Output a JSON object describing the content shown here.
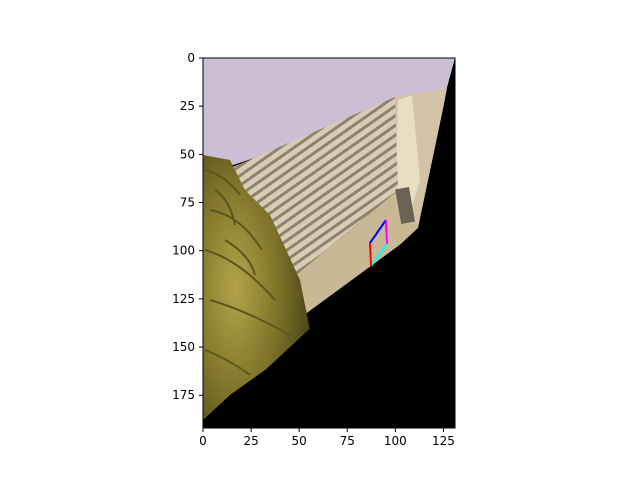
{
  "figure": {
    "x_axis": {
      "ticks": [
        "0",
        "25",
        "50",
        "75",
        "100",
        "125"
      ],
      "tick_values": [
        0,
        25,
        50,
        75,
        100,
        125
      ],
      "range": [
        0,
        131
      ]
    },
    "y_axis": {
      "ticks": [
        "0",
        "25",
        "50",
        "75",
        "100",
        "125",
        "150",
        "175"
      ],
      "tick_values": [
        0,
        25,
        50,
        75,
        100,
        125,
        150,
        175
      ],
      "range": [
        0,
        192
      ],
      "inverted": true
    },
    "image": {
      "description_icon": "warped-photo",
      "colors": {
        "sky": "#cbbfd6",
        "wall": "#d4c6ac",
        "roof_slats": "#9c8f7a",
        "palm": "#8f8234",
        "void": "#000000"
      }
    },
    "annotation_box": {
      "edge_colors": [
        "#0000ff",
        "#ff00ff",
        "#00ffff",
        "#ff0000"
      ]
    }
  }
}
